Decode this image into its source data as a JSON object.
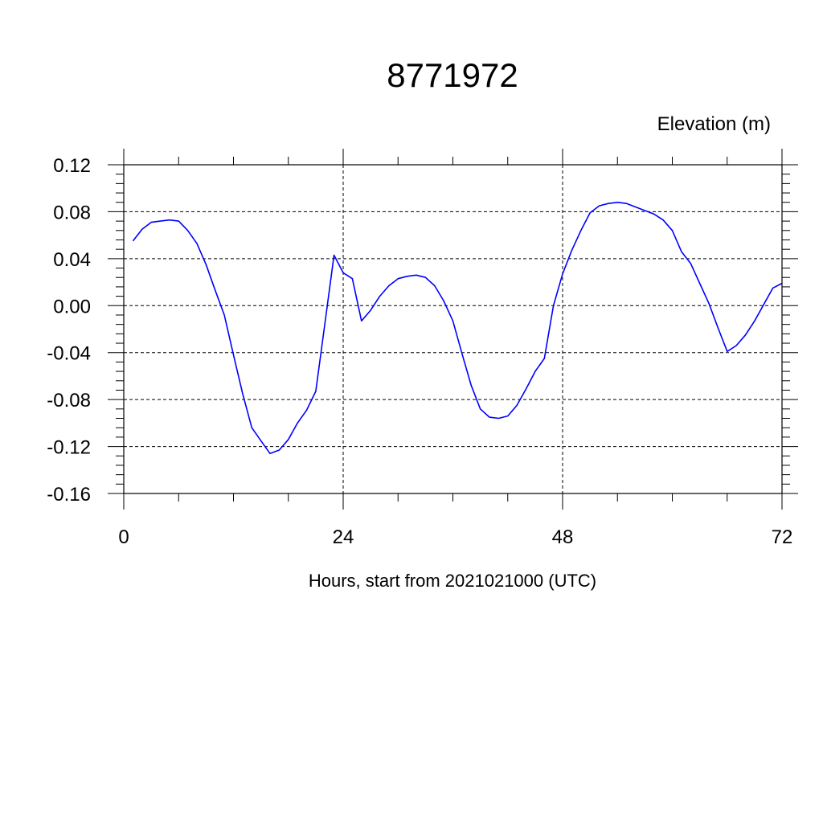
{
  "chart_data": {
    "type": "line",
    "title": "8771972",
    "ylabel": "Elevation (m)",
    "xlabel": "Hours, start from 2021021000 (UTC)",
    "xlim": [
      0,
      72
    ],
    "ylim": [
      -0.16,
      0.12
    ],
    "x_ticks": [
      0,
      24,
      48,
      72
    ],
    "x_tick_labels": [
      "0",
      "24",
      "48",
      "72"
    ],
    "y_ticks": [
      -0.16,
      -0.12,
      -0.08,
      -0.04,
      0.0,
      0.04,
      0.08,
      0.12
    ],
    "y_tick_labels": [
      "-0.16",
      "-0.12",
      "-0.08",
      "-0.04",
      "0.00",
      "0.04",
      "0.08",
      "0.12"
    ],
    "grid": true,
    "series": [
      {
        "color": "#0000ff",
        "x": [
          1,
          2,
          3,
          4,
          5,
          6,
          7,
          8,
          9,
          10,
          11,
          12,
          13,
          14,
          15,
          16,
          17,
          18,
          19,
          20,
          21,
          22,
          23,
          24,
          25,
          26,
          27,
          28,
          29,
          30,
          31,
          32,
          33,
          34,
          35,
          36,
          37,
          38,
          39,
          40,
          41,
          42,
          43,
          44,
          45,
          46,
          47,
          48,
          49,
          50,
          51,
          52,
          53,
          54,
          55,
          56,
          57,
          58,
          59,
          60,
          61,
          62,
          63,
          64,
          65,
          66,
          67,
          68,
          69,
          70,
          71,
          72
        ],
        "y": [
          0.055,
          0.065,
          0.071,
          0.072,
          0.073,
          0.072,
          0.064,
          0.053,
          0.035,
          0.013,
          -0.008,
          -0.042,
          -0.075,
          -0.104,
          -0.115,
          -0.126,
          -0.123,
          -0.114,
          -0.1,
          -0.089,
          -0.073,
          -0.015,
          0.043,
          0.028,
          0.023,
          -0.013,
          -0.004,
          0.008,
          0.017,
          0.023,
          0.025,
          0.026,
          0.024,
          0.017,
          0.004,
          -0.013,
          -0.041,
          -0.068,
          -0.088,
          -0.095,
          -0.096,
          -0.094,
          -0.085,
          -0.071,
          -0.056,
          -0.045,
          0.0,
          0.027,
          0.047,
          0.064,
          0.079,
          0.085,
          0.087,
          0.088,
          0.087,
          0.084,
          0.081,
          0.078,
          0.073,
          0.064,
          0.046,
          0.036,
          0.019,
          0.002,
          -0.019,
          -0.039,
          -0.034,
          -0.025,
          -0.013,
          0.001,
          0.015,
          0.019
        ]
      }
    ]
  }
}
